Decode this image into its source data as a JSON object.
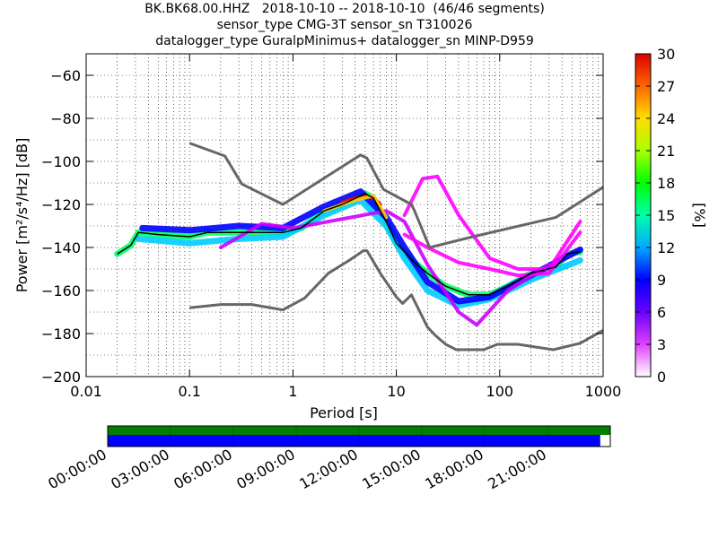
{
  "header": {
    "title_lines": [
      "BK.BK68.00.HHZ   2018-10-10 -- 2018-10-10  (46/46 segments)",
      "sensor_type CMG-3T sensor_sn T310026",
      "datalogger_type GuralpMinimus+ datalogger_sn MINP-D959"
    ]
  },
  "colorbar": {
    "ticks": [
      "0",
      "3",
      "6",
      "9",
      "12",
      "15",
      "18",
      "21",
      "24",
      "27",
      "30"
    ],
    "label": "[%]"
  },
  "timeline": {
    "ticks": [
      "00:00:00",
      "03:00:00",
      "06:00:00",
      "09:00:00",
      "12:00:00",
      "15:00:00",
      "18:00:00",
      "21:00:00"
    ],
    "top_color": "#008000",
    "bottom_color": "#0000ff",
    "coverage_fraction": 0.98
  },
  "chart_data": {
    "type": "heatmap",
    "xlabel": "Period [s]",
    "ylabel": "Power [m²/s⁴/Hz] [dB]",
    "x_scale": "log",
    "xlim": [
      0.01,
      1000
    ],
    "ylim": [
      -200,
      -50
    ],
    "x_ticks": [
      {
        "v": 0.01,
        "label": "0.01"
      },
      {
        "v": 0.1,
        "label": "0.1"
      },
      {
        "v": 1,
        "label": "1"
      },
      {
        "v": 10,
        "label": "10"
      },
      {
        "v": 100,
        "label": "100"
      },
      {
        "v": 1000,
        "label": "1000"
      }
    ],
    "y_ticks": [
      {
        "v": -60,
        "label": "−60"
      },
      {
        "v": -80,
        "label": "−80"
      },
      {
        "v": -100,
        "label": "−100"
      },
      {
        "v": -120,
        "label": "−120"
      },
      {
        "v": -140,
        "label": "−140"
      },
      {
        "v": -160,
        "label": "−160"
      },
      {
        "v": -180,
        "label": "−180"
      },
      {
        "v": -200,
        "label": "−200"
      }
    ],
    "grid": true,
    "colorbar_range": [
      0,
      30
    ],
    "series": [
      {
        "color": "#666666",
        "points": [
          [
            0.1,
            -91.5
          ],
          [
            0.22,
            -97.5
          ],
          [
            0.32,
            -110.5
          ],
          [
            0.8,
            -120
          ],
          [
            4.5,
            -97
          ],
          [
            5.2,
            -98.5
          ],
          [
            7.5,
            -113
          ],
          [
            14,
            -120
          ],
          [
            15,
            -123
          ],
          [
            21,
            -140
          ],
          [
            55,
            -135
          ],
          [
            350,
            -126
          ],
          [
            1000,
            -112
          ]
        ]
      },
      {
        "color": "#666666",
        "points": [
          [
            0.1,
            -168
          ],
          [
            0.2,
            -166.5
          ],
          [
            0.4,
            -166.5
          ],
          [
            0.8,
            -169
          ],
          [
            1.3,
            -163.5
          ],
          [
            2.2,
            -152
          ],
          [
            3.5,
            -146
          ],
          [
            4.8,
            -141.5
          ],
          [
            5.2,
            -141.5
          ],
          [
            7,
            -152
          ],
          [
            10,
            -163
          ],
          [
            11.5,
            -166
          ],
          [
            14,
            -162
          ],
          [
            20,
            -177
          ],
          [
            24,
            -181
          ],
          [
            30,
            -185
          ],
          [
            38,
            -187.5
          ],
          [
            70,
            -187.5
          ],
          [
            95,
            -185
          ],
          [
            150,
            -185
          ],
          [
            330,
            -187.5
          ],
          [
            600,
            -184.5
          ],
          [
            1000,
            -178.5
          ]
        ]
      },
      {
        "color": "#000000",
        "points": [
          [
            0.02,
            -143
          ],
          [
            0.027,
            -139
          ],
          [
            0.032,
            -133
          ],
          [
            0.05,
            -134
          ],
          [
            0.1,
            -135
          ],
          [
            0.15,
            -133
          ],
          [
            0.3,
            -133
          ],
          [
            0.5,
            -133
          ],
          [
            0.8,
            -133
          ],
          [
            1.2,
            -131
          ],
          [
            2,
            -123
          ],
          [
            3,
            -120
          ],
          [
            4.5,
            -116
          ],
          [
            5,
            -115
          ],
          [
            6,
            -117
          ],
          [
            8,
            -128
          ],
          [
            10,
            -138
          ],
          [
            12,
            -142
          ],
          [
            15,
            -147
          ],
          [
            20,
            -152
          ],
          [
            30,
            -158
          ],
          [
            50,
            -162
          ],
          [
            80,
            -162
          ],
          [
            120,
            -158
          ],
          [
            200,
            -152
          ],
          [
            350,
            -149
          ],
          [
            450,
            -143
          ],
          [
            600,
            -142
          ]
        ]
      }
    ],
    "density": [
      {
        "color": "#00ff66",
        "points": [
          [
            0.02,
            -143
          ],
          [
            0.027,
            -139
          ],
          [
            0.032,
            -133
          ],
          [
            0.05,
            -134
          ],
          [
            0.1,
            -135
          ],
          [
            0.15,
            -133
          ],
          [
            0.3,
            -133
          ],
          [
            0.5,
            -133
          ],
          [
            0.8,
            -133
          ],
          [
            1.2,
            -131
          ],
          [
            2,
            -123
          ],
          [
            3,
            -120
          ],
          [
            4.5,
            -116
          ],
          [
            5,
            -115
          ],
          [
            6,
            -117
          ],
          [
            8,
            -128
          ],
          [
            10,
            -138
          ],
          [
            12,
            -142
          ],
          [
            15,
            -147
          ],
          [
            20,
            -152
          ],
          [
            30,
            -158
          ],
          [
            50,
            -162
          ],
          [
            80,
            -162
          ],
          [
            120,
            -158
          ],
          [
            200,
            -152
          ],
          [
            350,
            -149
          ],
          [
            450,
            -143
          ],
          [
            600,
            -142
          ]
        ]
      },
      {
        "color": "#00ccff",
        "points": [
          [
            0.032,
            -136
          ],
          [
            0.1,
            -138
          ],
          [
            0.3,
            -136
          ],
          [
            0.8,
            -135
          ],
          [
            2,
            -125
          ],
          [
            4.5,
            -118
          ],
          [
            8,
            -130
          ],
          [
            12,
            -145
          ],
          [
            20,
            -160
          ],
          [
            40,
            -167
          ],
          [
            80,
            -164
          ],
          [
            200,
            -155
          ],
          [
            600,
            -146
          ]
        ]
      },
      {
        "color": "#0000ff",
        "points": [
          [
            0.035,
            -131
          ],
          [
            0.1,
            -132
          ],
          [
            0.3,
            -130
          ],
          [
            0.8,
            -131
          ],
          [
            2,
            -121
          ],
          [
            4.5,
            -114
          ],
          [
            8,
            -126
          ],
          [
            12,
            -140
          ],
          [
            20,
            -156
          ],
          [
            40,
            -165
          ],
          [
            80,
            -163
          ],
          [
            200,
            -153
          ],
          [
            600,
            -141
          ]
        ]
      },
      {
        "color": "#cc00ff",
        "points": [
          [
            0.2,
            -140
          ],
          [
            0.5,
            -129
          ],
          [
            1,
            -131
          ],
          [
            8,
            -123
          ],
          [
            12,
            -128
          ],
          [
            20,
            -148
          ],
          [
            40,
            -170
          ],
          [
            60,
            -176
          ],
          [
            120,
            -160
          ],
          [
            300,
            -148
          ]
        ]
      },
      {
        "color": "#ff00ff",
        "points": [
          [
            12,
            -125
          ],
          [
            18,
            -108
          ],
          [
            25,
            -107
          ],
          [
            40,
            -125
          ],
          [
            80,
            -145
          ],
          [
            150,
            -150
          ],
          [
            300,
            -150
          ],
          [
            600,
            -128
          ]
        ]
      },
      {
        "color": "#ff00ff",
        "points": [
          [
            12,
            -134
          ],
          [
            20,
            -140
          ],
          [
            40,
            -147
          ],
          [
            80,
            -150
          ],
          [
            150,
            -153
          ],
          [
            300,
            -152
          ],
          [
            600,
            -133
          ]
        ]
      },
      {
        "color": "#ff0000",
        "points": [
          [
            3,
            -119
          ],
          [
            4,
            -117
          ],
          [
            5,
            -116
          ],
          [
            6,
            -117
          ],
          [
            7,
            -120
          ]
        ]
      },
      {
        "color": "#ffcc00",
        "points": [
          [
            2,
            -123
          ],
          [
            4,
            -118
          ],
          [
            6,
            -116
          ],
          [
            8,
            -126
          ]
        ]
      }
    ]
  }
}
